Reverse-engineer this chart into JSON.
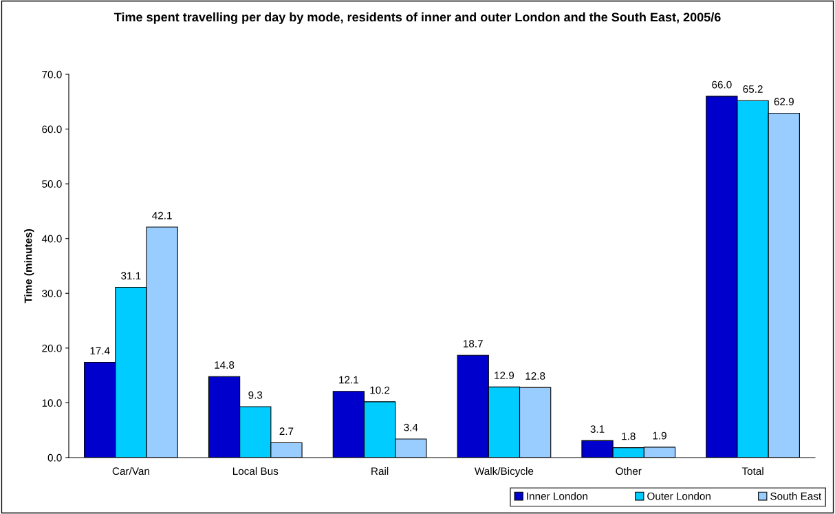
{
  "chart_data": {
    "type": "bar",
    "title": "Time spent travelling per day by mode, residents of inner and outer London and the South East, 2005/6",
    "ylabel": "Time (minutes)",
    "categories": [
      "Car/Van",
      "Local Bus",
      "Rail",
      "Walk/Bicycle",
      "Other",
      "Total"
    ],
    "series": [
      {
        "name": "Inner London",
        "color": "#0000cc",
        "values": [
          17.4,
          14.8,
          12.1,
          18.7,
          3.1,
          66.0
        ],
        "value_labels": [
          "17.4",
          "14.8",
          "12.1",
          "18.7",
          "3.1",
          "66.0"
        ]
      },
      {
        "name": "Outer London",
        "color": "#00ccff",
        "values": [
          31.1,
          9.3,
          10.2,
          12.9,
          1.8,
          65.2
        ],
        "value_labels": [
          "31.1",
          "9.3",
          "10.2",
          "12.9",
          "1.8",
          "65.2"
        ]
      },
      {
        "name": "South East",
        "color": "#99ccff",
        "values": [
          42.1,
          2.7,
          3.4,
          12.8,
          1.9,
          62.9
        ],
        "value_labels": [
          "42.1",
          "2.7",
          "3.4",
          "12.8",
          "1.9",
          "62.9"
        ]
      }
    ],
    "ylim": [
      0,
      70
    ],
    "yticks": [
      {
        "value": 0,
        "label": "0.0"
      },
      {
        "value": 10,
        "label": "10.0"
      },
      {
        "value": 20,
        "label": "20.0"
      },
      {
        "value": 30,
        "label": "30.0"
      },
      {
        "value": 40,
        "label": "40.0"
      },
      {
        "value": 50,
        "label": "50.0"
      },
      {
        "value": 60,
        "label": "60.0"
      },
      {
        "value": 70,
        "label": "70.0"
      }
    ],
    "grid": false,
    "legend": "bottom"
  }
}
